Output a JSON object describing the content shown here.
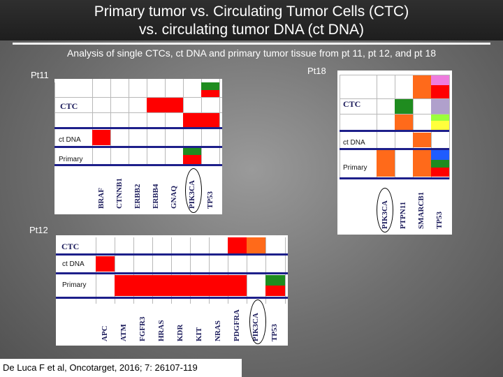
{
  "slide": {
    "title_line1": "Primary tumor vs. Circulating Tumor Cells (CTC)",
    "title_line2": "vs. circulating tumor DNA (ct DNA)",
    "subtitle": "Analysis of single CTCs, ct DNA and primary tumor tissue from pt 11, pt 12, and pt 18",
    "citation": "De Luca F et al, Oncotarget, 2016; 7: 26107-119"
  },
  "colors": {
    "red": "#ff0000",
    "orange": "#ff6a1a",
    "green": "#1f8c1f",
    "lime": "#9bff3c",
    "yellow": "#ffff3c",
    "blue": "#1f5cff",
    "pink": "#ee7cdd",
    "lavender": "#b0a0cc",
    "line": "#1d1f8a"
  },
  "pt11": {
    "label": "Pt11",
    "rows": {
      "ctc": "CTC",
      "ctdna": "ct DNA",
      "primary": "Primary"
    },
    "genes": [
      "BRAF",
      "CTNNB1",
      "ERBB2",
      "ERBB4",
      "GNAQ",
      "PIK3CA",
      "TP53"
    ],
    "circled_gene": "PIK3CA"
  },
  "pt12": {
    "label": "Pt12",
    "rows": {
      "ctc": "CTC",
      "ctdna": "ct DNA",
      "primary": "Primary"
    },
    "genes": [
      "APC",
      "ATM",
      "FGFR3",
      "HRAS",
      "KDR",
      "KIT",
      "NRAS",
      "PDGFRA",
      "PIK3CA",
      "TP53"
    ],
    "circled_gene": "PIK3CA"
  },
  "pt18": {
    "label": "Pt18",
    "rows": {
      "ctc": "CTC",
      "ctdna": "ct DNA",
      "primary": "Primary"
    },
    "genes": [
      "PIK3CA",
      "PTPN11",
      "SMARCB1",
      "TP53"
    ],
    "circled_gene": "PIK3CA"
  }
}
